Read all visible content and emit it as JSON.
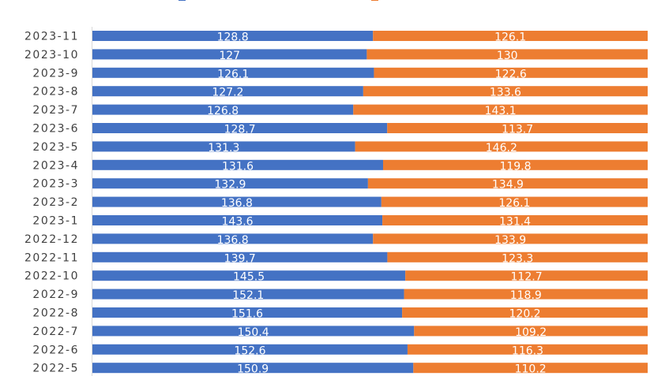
{
  "chart_data": {
    "type": "bar",
    "orientation": "horizontal",
    "stacked": "percent",
    "categories": [
      "2023-11",
      "2023-10",
      "2023-9",
      "2023-8",
      "2023-7",
      "2023-6",
      "2023-5",
      "2023-4",
      "2023-3",
      "2023-2",
      "2023-1",
      "2022-12",
      "2022-11",
      "2022-10",
      "2022-9",
      "2022-8",
      "2022-7",
      "2022-6",
      "2022-5"
    ],
    "series": [
      {
        "values": [
          128.8,
          127,
          126.1,
          127.2,
          126.8,
          128.7,
          131.3,
          131.6,
          132.9,
          136.8,
          143.6,
          136.8,
          139.7,
          145.5,
          152.1,
          151.6,
          150.4,
          152.6,
          150.9
        ],
        "labels": [
          "128.8",
          "127",
          "126.1",
          "127.2",
          "126.8",
          "128.7",
          "131.3",
          "131.6",
          "132.9",
          "136.8",
          "143.6",
          "136.8",
          "139.7",
          "145.5",
          "152.1",
          "151.6",
          "150.4",
          "152.6",
          "150.9"
        ],
        "color": "#4472C4"
      },
      {
        "values": [
          126.1,
          130,
          122.6,
          133.6,
          143.1,
          113.7,
          146.2,
          119.8,
          134.9,
          126.1,
          131.4,
          133.9,
          123.3,
          112.7,
          118.9,
          120.2,
          109.2,
          116.3,
          110.2
        ],
        "labels": [
          "126.1",
          "130",
          "122.6",
          "133.6",
          "143.1",
          "113.7",
          "146.2",
          "119.8",
          "134.9",
          "126.1",
          "131.4",
          "133.9",
          "123.3",
          "112.7",
          "118.9",
          "120.2",
          "109.2",
          "116.3",
          "110.2"
        ],
        "color": "#ED7D31"
      }
    ],
    "legend": "top",
    "grid": false
  }
}
